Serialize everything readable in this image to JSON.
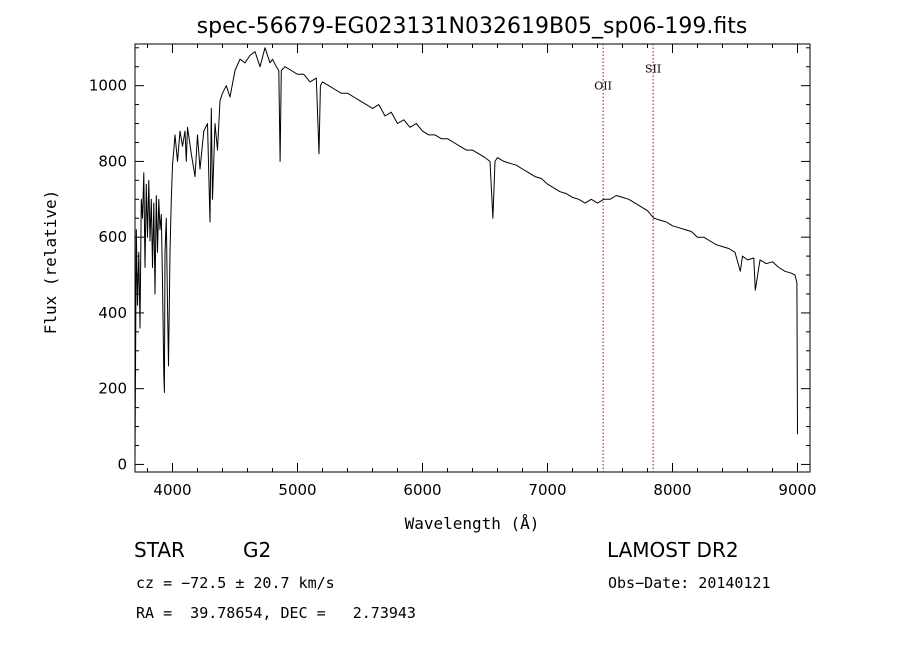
{
  "chart_data": {
    "type": "line",
    "title": "spec-56679-EG023131N032619B05_sp06-199.fits",
    "xlabel": "Wavelength (Å)",
    "ylabel": "Flux (relative)",
    "xlim": [
      3700,
      9100
    ],
    "ylim": [
      -20,
      1110
    ],
    "xticks": [
      4000,
      5000,
      6000,
      7000,
      8000,
      9000
    ],
    "yticks": [
      0,
      200,
      400,
      600,
      800,
      1000
    ],
    "grid": false,
    "line_color": "#000000",
    "marker_color": "#8b1a1a",
    "markers": [
      {
        "label": "OII",
        "x": 7445,
        "label_y": 990
      },
      {
        "label": "SII",
        "x": 7845,
        "label_y": 1035
      }
    ],
    "series": [
      {
        "x": [
          3700,
          3710,
          3720,
          3730,
          3740,
          3750,
          3760,
          3770,
          3780,
          3790,
          3800,
          3810,
          3820,
          3830,
          3840,
          3850,
          3860,
          3870,
          3880,
          3890,
          3900,
          3910,
          3920,
          3930,
          3935,
          3940,
          3950,
          3960,
          3968,
          3980,
          3990,
          4000,
          4010,
          4020,
          4040,
          4060,
          4080,
          4100,
          4110,
          4120,
          4150,
          4180,
          4200,
          4220,
          4250,
          4280,
          4300,
          4310,
          4320,
          4340,
          4360,
          4380,
          4400,
          4430,
          4460,
          4500,
          4540,
          4580,
          4620,
          4660,
          4700,
          4740,
          4780,
          4800,
          4830,
          4850,
          4861,
          4870,
          4900,
          4950,
          5000,
          5050,
          5100,
          5150,
          5172,
          5183,
          5200,
          5250,
          5300,
          5350,
          5400,
          5450,
          5500,
          5550,
          5600,
          5650,
          5700,
          5750,
          5800,
          5850,
          5900,
          5950,
          6000,
          6050,
          6100,
          6150,
          6200,
          6250,
          6300,
          6350,
          6400,
          6450,
          6500,
          6540,
          6563,
          6580,
          6600,
          6650,
          6700,
          6750,
          6800,
          6850,
          6900,
          6950,
          7000,
          7050,
          7100,
          7150,
          7200,
          7250,
          7300,
          7350,
          7400,
          7450,
          7500,
          7550,
          7600,
          7650,
          7700,
          7750,
          7800,
          7850,
          7900,
          7950,
          8000,
          8050,
          8100,
          8150,
          8200,
          8250,
          8300,
          8350,
          8400,
          8450,
          8500,
          8542,
          8560,
          8600,
          8650,
          8662,
          8700,
          8750,
          8800,
          8850,
          8900,
          8950,
          8980,
          8995,
          9000
        ],
        "values": [
          10,
          620,
          420,
          560,
          360,
          700,
          650,
          770,
          520,
          740,
          600,
          750,
          590,
          700,
          520,
          690,
          450,
          710,
          560,
          700,
          620,
          660,
          480,
          240,
          190,
          560,
          650,
          420,
          260,
          560,
          700,
          790,
          830,
          870,
          800,
          880,
          840,
          880,
          800,
          890,
          820,
          760,
          870,
          780,
          880,
          900,
          640,
          940,
          700,
          900,
          830,
          960,
          980,
          1000,
          970,
          1040,
          1070,
          1060,
          1080,
          1090,
          1050,
          1100,
          1060,
          1070,
          1050,
          1040,
          800,
          1040,
          1050,
          1040,
          1030,
          1030,
          1010,
          1020,
          820,
          1000,
          1010,
          1000,
          990,
          980,
          980,
          970,
          960,
          950,
          940,
          950,
          920,
          930,
          900,
          910,
          890,
          900,
          880,
          870,
          870,
          860,
          860,
          850,
          840,
          830,
          830,
          820,
          810,
          800,
          650,
          800,
          810,
          800,
          795,
          790,
          780,
          770,
          760,
          755,
          740,
          730,
          720,
          715,
          705,
          700,
          690,
          700,
          690,
          700,
          700,
          710,
          705,
          700,
          690,
          680,
          670,
          650,
          645,
          640,
          630,
          625,
          620,
          615,
          600,
          600,
          590,
          580,
          575,
          570,
          560,
          510,
          550,
          540,
          545,
          460,
          540,
          530,
          535,
          520,
          510,
          505,
          500,
          480,
          80
        ]
      }
    ]
  },
  "info": {
    "class_label": "STAR",
    "subclass": "G2",
    "survey": "LAMOST DR2",
    "cz": "cz = −72.5 ± 20.7 km/s",
    "obs_date": "Obs−Date: 20140121",
    "radec": "RA =  39.78654, DEC =   2.73943"
  }
}
